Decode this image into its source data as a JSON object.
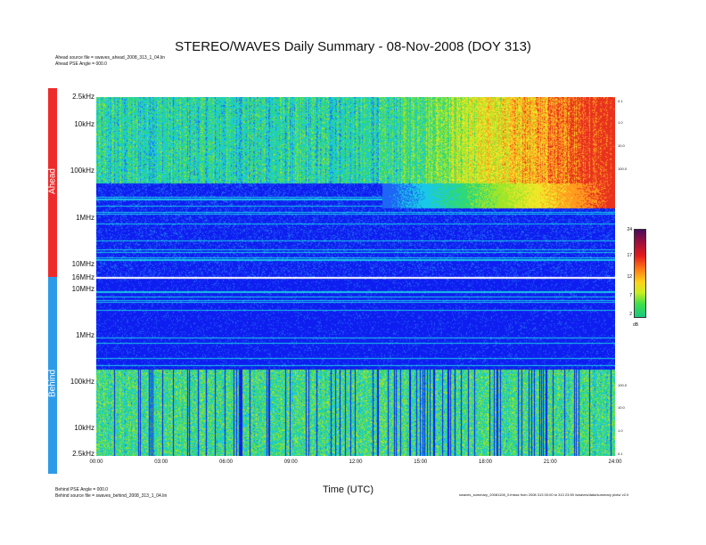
{
  "chart_data": {
    "type": "heatmap",
    "title": "STEREO/WAVES Daily Summary - 08-Nov-2008 (DOY 313)",
    "xlabel": "Time (UTC)",
    "x_ticks": [
      "00:00",
      "03:00",
      "06:00",
      "09:00",
      "12:00",
      "15:00",
      "18:00",
      "21:00",
      "24:00"
    ],
    "xlim_hours": [
      0,
      24
    ],
    "colorbar": {
      "unit": "dB",
      "ticks": [
        "24",
        "17",
        "12",
        "7",
        "2"
      ],
      "range": [
        2,
        24
      ]
    },
    "panels": [
      {
        "name": "Ahead",
        "color": "#ee2b2b",
        "y_ticks": [
          "2.5kHz",
          "10kHz",
          "100kHz",
          "1MHz",
          "10MHz",
          "16MHz"
        ],
        "right_ticks": [
          "0.1",
          "1.0",
          "10.0",
          "100.0"
        ],
        "source_note": "Ahead source file = swaves_ahead_2008_313_1_04.lin",
        "angle_note": "Ahead PSE Angle = 000.0"
      },
      {
        "name": "Behind",
        "color": "#2e9be8",
        "y_ticks": [
          "10MHz",
          "1MHz",
          "100kHz",
          "10kHz",
          "2.5kHz"
        ],
        "right_ticks": [
          "100.0",
          "10.0",
          "1.0",
          "0.1"
        ],
        "source_note": "Behind source file = swaves_behind_2008_313_1_04.lin",
        "angle_note": "Behind PSE Angle = 000.0"
      }
    ]
  },
  "footer_right": "swaves_summary_20081108_0.fnlsss from 2008 313 00:00 to 313 23:59 /swaves/data/summary plots/ v2.0"
}
